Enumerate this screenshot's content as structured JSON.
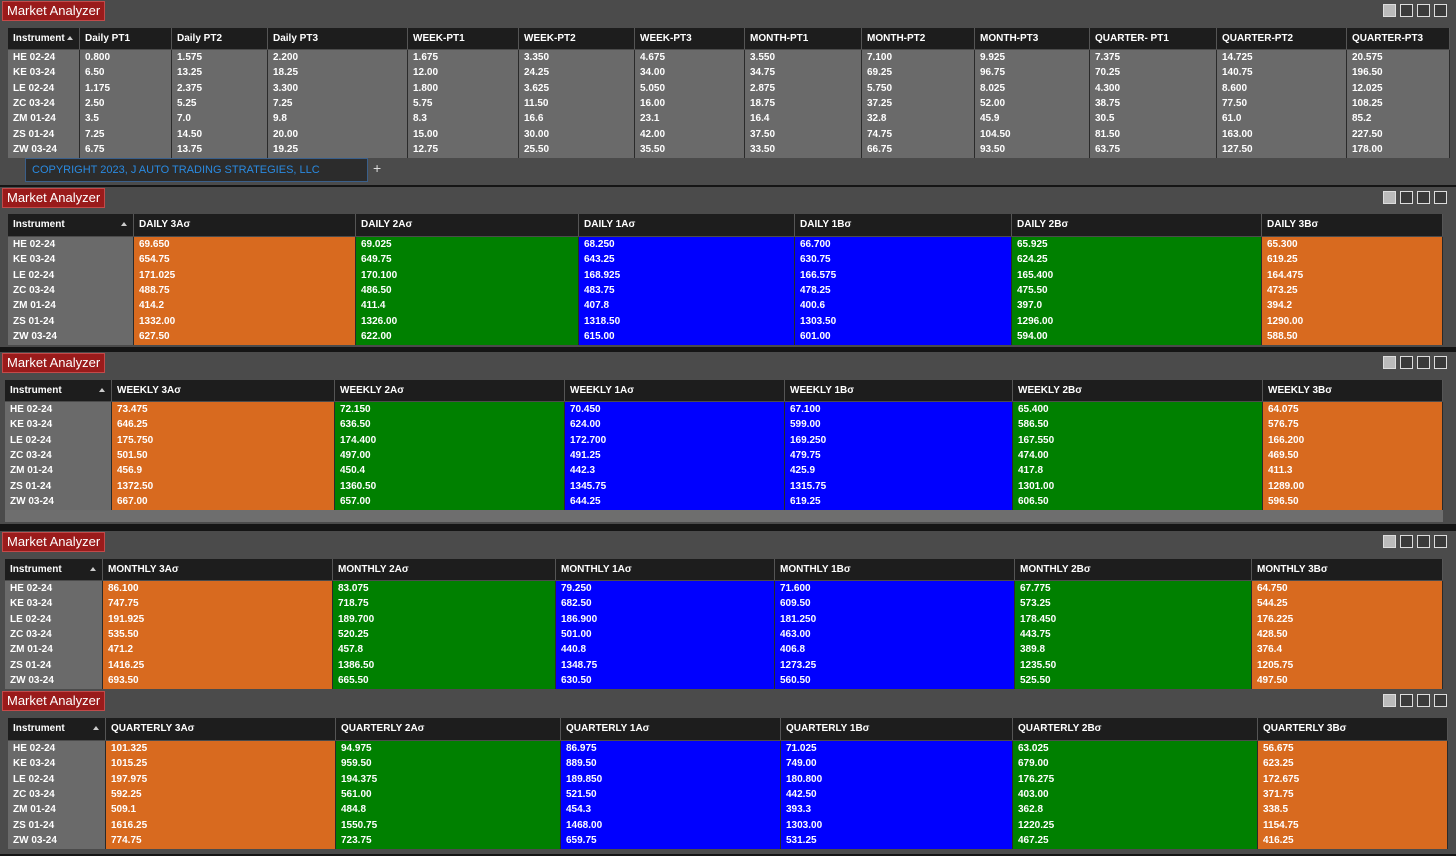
{
  "windows": [
    {
      "title": "Market Analyzer",
      "headers": [
        "Instrument",
        "Daily PT1",
        "Daily PT2",
        "Daily PT3",
        "WEEK-PT1",
        "WEEK-PT2",
        "WEEK-PT3",
        "MONTH-PT1",
        "MONTH-PT2",
        "MONTH-PT3",
        "QUARTER- PT1",
        "QUARTER-PT2",
        "QUARTER-PT3"
      ],
      "rows": [
        [
          "HE 02-24",
          "0.800",
          "1.575",
          "2.200",
          "1.675",
          "3.350",
          "4.675",
          "3.550",
          "7.100",
          "9.925",
          "7.375",
          "14.725",
          "20.575"
        ],
        [
          "KE 03-24",
          "6.50",
          "13.25",
          "18.25",
          "12.00",
          "24.25",
          "34.00",
          "34.75",
          "69.25",
          "96.75",
          "70.25",
          "140.75",
          "196.50"
        ],
        [
          "LE 02-24",
          "1.175",
          "2.375",
          "3.300",
          "1.800",
          "3.625",
          "5.050",
          "2.875",
          "5.750",
          "8.025",
          "4.300",
          "8.600",
          "12.025"
        ],
        [
          "ZC 03-24",
          "2.50",
          "5.25",
          "7.25",
          "5.75",
          "11.50",
          "16.00",
          "18.75",
          "37.25",
          "52.00",
          "38.75",
          "77.50",
          "108.25"
        ],
        [
          "ZM 01-24",
          "3.5",
          "7.0",
          "9.8",
          "8.3",
          "16.6",
          "23.1",
          "16.4",
          "32.8",
          "45.9",
          "30.5",
          "61.0",
          "85.2"
        ],
        [
          "ZS 01-24",
          "7.25",
          "14.50",
          "20.00",
          "15.00",
          "30.00",
          "42.00",
          "37.50",
          "74.75",
          "104.50",
          "81.50",
          "163.00",
          "227.50"
        ],
        [
          "ZW 03-24",
          "6.75",
          "13.75",
          "19.25",
          "12.75",
          "25.50",
          "35.50",
          "33.50",
          "66.75",
          "93.50",
          "63.75",
          "127.50",
          "178.00"
        ]
      ],
      "tab": "COPYRIGHT 2023, J AUTO TRADING STRATEGIES, LLC",
      "add_tab": "+"
    },
    {
      "title": "Market Analyzer",
      "headers": [
        "Instrument",
        "DAILY 3Aσ",
        "DAILY 2Aσ",
        "DAILY 1Aσ",
        "DAILY 1Bσ",
        "DAILY 2Bσ",
        "DAILY 3Bσ"
      ],
      "rows": [
        [
          "HE 02-24",
          "69.650",
          "69.025",
          "68.250",
          "66.700",
          "65.925",
          "65.300"
        ],
        [
          "KE 03-24",
          "654.75",
          "649.75",
          "643.25",
          "630.75",
          "624.25",
          "619.25"
        ],
        [
          "LE 02-24",
          "171.025",
          "170.100",
          "168.925",
          "166.575",
          "165.400",
          "164.475"
        ],
        [
          "ZC 03-24",
          "488.75",
          "486.50",
          "483.75",
          "478.25",
          "475.50",
          "473.25"
        ],
        [
          "ZM 01-24",
          "414.2",
          "411.4",
          "407.8",
          "400.6",
          "397.0",
          "394.2"
        ],
        [
          "ZS 01-24",
          "1332.00",
          "1326.00",
          "1318.50",
          "1303.50",
          "1296.00",
          "1290.00"
        ],
        [
          "ZW 03-24",
          "627.50",
          "622.00",
          "615.00",
          "601.00",
          "594.00",
          "588.50"
        ]
      ]
    },
    {
      "title": "Market Analyzer",
      "headers": [
        "Instrument",
        "WEEKLY 3Aσ",
        "WEEKLY 2Aσ",
        "WEEKLY 1Aσ",
        "WEEKLY 1Bσ",
        "WEEKLY 2Bσ",
        "WEEKLY 3Bσ"
      ],
      "rows": [
        [
          "HE 02-24",
          "73.475",
          "72.150",
          "70.450",
          "67.100",
          "65.400",
          "64.075"
        ],
        [
          "KE 03-24",
          "646.25",
          "636.50",
          "624.00",
          "599.00",
          "586.50",
          "576.75"
        ],
        [
          "LE 02-24",
          "175.750",
          "174.400",
          "172.700",
          "169.250",
          "167.550",
          "166.200"
        ],
        [
          "ZC 03-24",
          "501.50",
          "497.00",
          "491.25",
          "479.75",
          "474.00",
          "469.50"
        ],
        [
          "ZM 01-24",
          "456.9",
          "450.4",
          "442.3",
          "425.9",
          "417.8",
          "411.3"
        ],
        [
          "ZS 01-24",
          "1372.50",
          "1360.50",
          "1345.75",
          "1315.75",
          "1301.00",
          "1289.00"
        ],
        [
          "ZW 03-24",
          "667.00",
          "657.00",
          "644.25",
          "619.25",
          "606.50",
          "596.50"
        ]
      ]
    },
    {
      "title": "Market Analyzer",
      "headers": [
        "Instrument",
        "MONTHLY 3Aσ",
        "MONTHLY 2Aσ",
        "MONTHLY 1Aσ",
        "MONTHLY 1Bσ",
        "MONTHLY 2Bσ",
        "MONTHLY 3Bσ"
      ],
      "rows": [
        [
          "HE 02-24",
          "86.100",
          "83.075",
          "79.250",
          "71.600",
          "67.775",
          "64.750"
        ],
        [
          "KE 03-24",
          "747.75",
          "718.75",
          "682.50",
          "609.50",
          "573.25",
          "544.25"
        ],
        [
          "LE 02-24",
          "191.925",
          "189.700",
          "186.900",
          "181.250",
          "178.450",
          "176.225"
        ],
        [
          "ZC 03-24",
          "535.50",
          "520.25",
          "501.00",
          "463.00",
          "443.75",
          "428.50"
        ],
        [
          "ZM 01-24",
          "471.2",
          "457.8",
          "440.8",
          "406.8",
          "389.8",
          "376.4"
        ],
        [
          "ZS 01-24",
          "1416.25",
          "1386.50",
          "1348.75",
          "1273.25",
          "1235.50",
          "1205.75"
        ],
        [
          "ZW 03-24",
          "693.50",
          "665.50",
          "630.50",
          "560.50",
          "525.50",
          "497.50"
        ]
      ]
    },
    {
      "title": "Market Analyzer",
      "headers": [
        "Instrument",
        "QUARTERLY 3Aσ",
        "QUARTERLY 2Aσ",
        "QUARTERLY 1Aσ",
        "QUARTERLY 1Bσ",
        "QUARTERLY 2Bσ",
        "QUARTERLY 3Bσ"
      ],
      "rows": [
        [
          "HE 02-24",
          "101.325",
          "94.975",
          "86.975",
          "71.025",
          "63.025",
          "56.675"
        ],
        [
          "KE 03-24",
          "1015.25",
          "959.50",
          "889.50",
          "749.00",
          "679.00",
          "623.25"
        ],
        [
          "LE 02-24",
          "197.975",
          "194.375",
          "189.850",
          "180.800",
          "176.275",
          "172.675"
        ],
        [
          "ZC 03-24",
          "592.25",
          "561.00",
          "521.50",
          "442.50",
          "403.00",
          "371.75"
        ],
        [
          "ZM 01-24",
          "509.1",
          "484.8",
          "454.3",
          "393.3",
          "362.8",
          "338.5"
        ],
        [
          "ZS 01-24",
          "1616.25",
          "1550.75",
          "1468.00",
          "1303.00",
          "1220.25",
          "1154.75"
        ],
        [
          "ZW 03-24",
          "774.75",
          "723.75",
          "659.75",
          "531.25",
          "467.25",
          "416.25"
        ]
      ]
    }
  ]
}
